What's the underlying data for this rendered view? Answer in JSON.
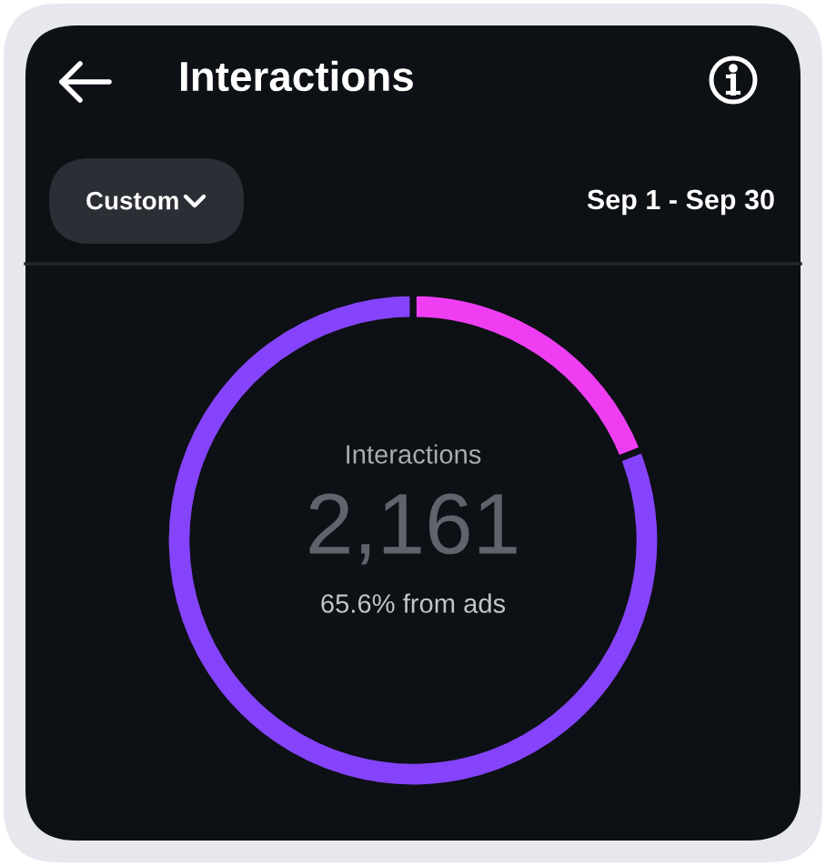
{
  "chart_data": {
    "type": "donut",
    "title": "Interactions",
    "subtitle": "Sep 1 - Sep 30",
    "categories": [
      null,
      null
    ],
    "values": [
      19,
      81
    ],
    "colors": [
      "#ef3ef2",
      "#8544fb"
    ],
    "annotations": [
      "Custom",
      "Interactions",
      "2,161",
      "65.6% from ads"
    ]
  }
}
